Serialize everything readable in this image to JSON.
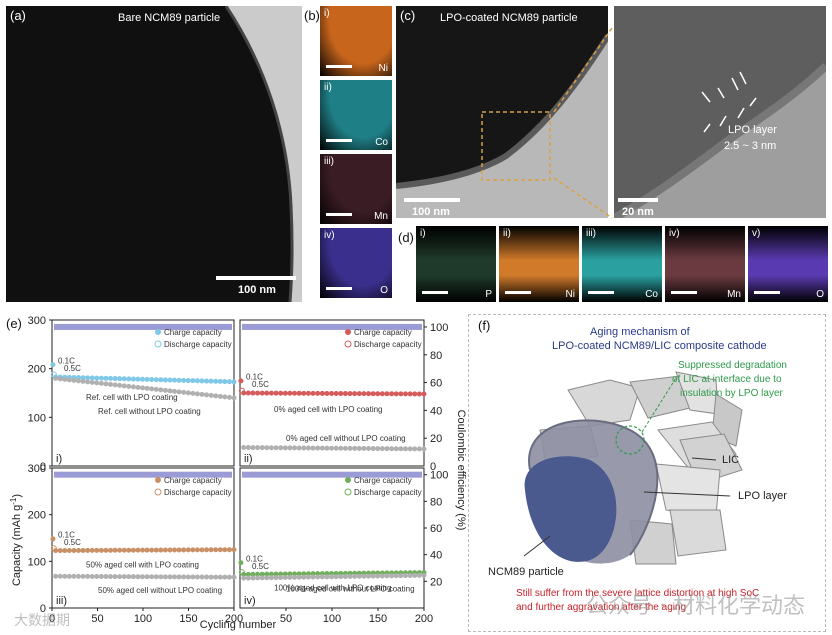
{
  "panel_labels": {
    "a": "(a)",
    "b": "(b)",
    "c": "(c)",
    "d": "(d)",
    "e": "(e)",
    "f": "(f)"
  },
  "a": {
    "title": "Bare NCM89 particle",
    "scale": "100 nm"
  },
  "b": {
    "maps": [
      {
        "roman": "i)",
        "element": "Ni",
        "color": "#c8651c"
      },
      {
        "roman": "ii)",
        "element": "Co",
        "color": "#1f7f86"
      },
      {
        "roman": "iii)",
        "element": "Mn",
        "color": "#3a1c24"
      },
      {
        "roman": "iv)",
        "element": "O",
        "color": "#3a2f8c"
      }
    ]
  },
  "c": {
    "title": "LPO-coated NCM89 particle",
    "scale_left": "100 nm",
    "scale_right": "20 nm",
    "layer_label": "LPO layer",
    "layer_thickness": "2.5 ~ 3 nm"
  },
  "d": {
    "maps": [
      {
        "roman": "i)",
        "element": "P",
        "color": "#1f3a2a"
      },
      {
        "roman": "ii)",
        "element": "Ni",
        "color": "#d07a2a"
      },
      {
        "roman": "iii)",
        "element": "Co",
        "color": "#2aa0a0"
      },
      {
        "roman": "iv)",
        "element": "Mn",
        "color": "#6a3a40"
      },
      {
        "roman": "v)",
        "element": "O",
        "color": "#5a3ab0"
      }
    ]
  },
  "chart_data": [
    {
      "type": "scatter",
      "panel": "i)",
      "title": "",
      "xlabel": "Cycling number",
      "ylabel": "Capacity (mAh g-1)",
      "y2label": "Coulombic efficiency (%)",
      "xlim": [
        0,
        200
      ],
      "ylim": [
        0,
        300
      ],
      "y2lim": [
        0,
        105
      ],
      "rate_labels": [
        "0.1C",
        "0.5C"
      ],
      "legend": [
        "Charge capacity",
        "Discharge capacity"
      ],
      "series": [
        {
          "name": "Ref. cell with LPO coating",
          "start": 183,
          "end": 173,
          "color": "#7fc8e8"
        },
        {
          "name": "Ref. cell without LPO coating",
          "start": 180,
          "end": 140,
          "color": "#b0b0b0"
        }
      ],
      "ce": 100,
      "annotations": [
        "Ref. cell with LPO coating",
        "Ref. cell without LPO coating"
      ]
    },
    {
      "type": "scatter",
      "panel": "ii)",
      "xlim": [
        0,
        200
      ],
      "ylim": [
        0,
        300
      ],
      "y2lim": [
        0,
        105
      ],
      "rate_labels": [
        "0.1C",
        "0.5C"
      ],
      "legend": [
        "Charge capacity",
        "Discharge capacity"
      ],
      "series": [
        {
          "name": "0% aged cell with LPO coating",
          "start": 150,
          "end": 148,
          "color": "#d65a5a"
        },
        {
          "name": "0% aged cell without LPO coating",
          "start": 38,
          "end": 35,
          "color": "#b0b0b0"
        }
      ],
      "ce": 100,
      "annotations": [
        "0% aged cell with LPO coating",
        "0% aged cell without LPO coating"
      ]
    },
    {
      "type": "scatter",
      "panel": "iii)",
      "xlim": [
        0,
        200
      ],
      "ylim": [
        0,
        300
      ],
      "y2lim": [
        0,
        105
      ],
      "rate_labels": [
        "0.1C",
        "0.5C"
      ],
      "legend": [
        "Charge capacity",
        "Discharge capacity"
      ],
      "series": [
        {
          "name": "50% aged cell with LPO coating",
          "start": 123,
          "end": 125,
          "color": "#c89064"
        },
        {
          "name": "50% aged cell without LPO coating",
          "start": 68,
          "end": 66,
          "color": "#b0b0b0"
        }
      ],
      "ce": 100,
      "annotations": [
        "50% aged cell with LPO coating",
        "50% aged cell without LPO coating"
      ]
    },
    {
      "type": "scatter",
      "panel": "iv)",
      "xlim": [
        0,
        200
      ],
      "ylim": [
        0,
        300
      ],
      "y2lim": [
        0,
        105
      ],
      "rate_labels": [
        "0.1C",
        "0.5C"
      ],
      "legend": [
        "Charge capacity",
        "Discharge capacity"
      ],
      "series": [
        {
          "name": "100% aged cell with LPO coating",
          "start": 72,
          "end": 76,
          "color": "#6fae5a"
        },
        {
          "name": "100% aged cell without LPO coating",
          "start": 64,
          "end": 70,
          "color": "#b0b0b0"
        }
      ],
      "ce": 100,
      "annotations": [
        "100% aged cell with LPO coating",
        "100% aged cell without LPO coating"
      ]
    }
  ],
  "e_axes": {
    "ylabel": "Capacity (mAh g",
    "ylabel_sup": "-1",
    "ylabel_end": ")",
    "y2label": "Coulombic efficiency (%)",
    "xlabel": "Cycling number",
    "yticks": [
      "0",
      "100",
      "200",
      "300"
    ],
    "yticks_low": [
      "0",
      "100",
      "200"
    ],
    "y2ticks": [
      "20",
      "40",
      "60",
      "80",
      "100"
    ],
    "y2ticks_low": [
      "20",
      "40",
      "60",
      "80",
      "100"
    ],
    "xticks_left": [
      "0",
      "50",
      "100",
      "150",
      "200"
    ],
    "xticks_right": [
      "50",
      "100",
      "150",
      "200"
    ],
    "y2ticks_top_zero": "0"
  },
  "f": {
    "title_line1": "Aging mechanism of",
    "title_line2": "LPO-coated NCM89/LIC composite cathode",
    "green_note_line1": "Suppressed degradation",
    "green_note_line2": "of LIC at interface due to",
    "green_note_line3": "insulation by LPO layer",
    "lic_label": "LIC",
    "lpo_label": "LPO layer",
    "ncm_label": "NCM89 particle",
    "red_note_line1": "Still suffer from the severe lattice distortion at high SoC",
    "red_note_line2": "and further aggravation after the aging"
  },
  "watermarks": {
    "left": "大数据期",
    "right": "公众号 · 材料化学动态"
  }
}
